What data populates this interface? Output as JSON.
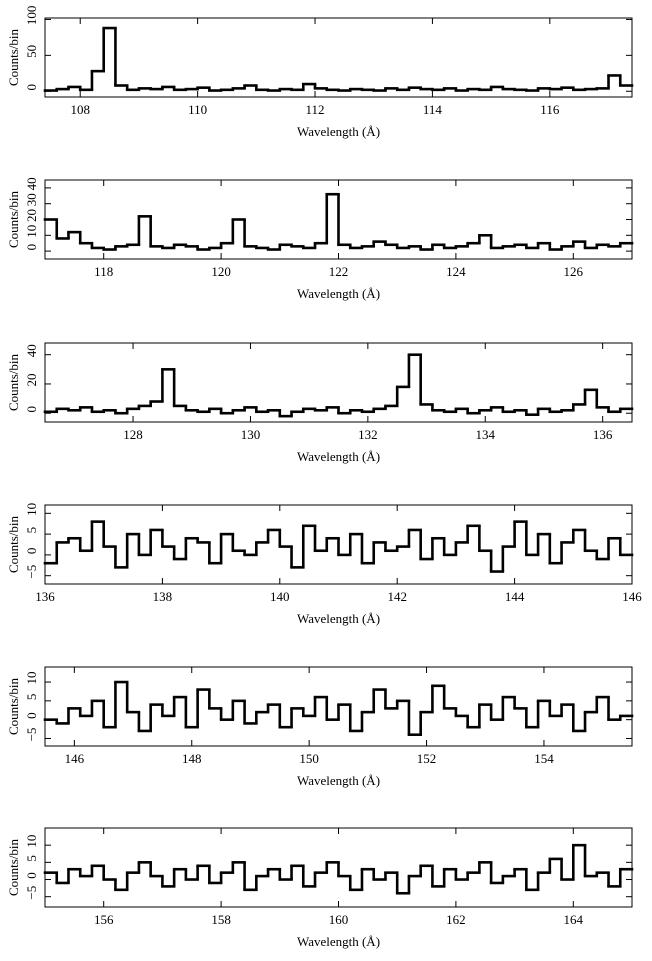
{
  "chart_data": [
    {
      "type": "histogram",
      "xlabel": "Wavelength (Å)",
      "ylabel": "Counts/bin",
      "color": "#000000",
      "bins": [
        107.4,
        107.6,
        107.8,
        108,
        108.2,
        108.4,
        108.6,
        108.8,
        109,
        109.2,
        109.4,
        109.6,
        109.8,
        110,
        110.2,
        110.4,
        110.6,
        110.8,
        111,
        111.2,
        111.4,
        111.6,
        111.8,
        112,
        112.2,
        112.4,
        112.6,
        112.8,
        113,
        113.2,
        113.4,
        113.6,
        113.8,
        114,
        114.2,
        114.4,
        114.6,
        114.8,
        115,
        115.2,
        115.4,
        115.6,
        115.8,
        116,
        116.2,
        116.4,
        116.6,
        116.8,
        117,
        117.2,
        117.4
      ],
      "values": [
        1,
        3,
        6,
        2,
        28,
        88,
        8,
        2,
        4,
        3,
        6,
        2,
        3,
        5,
        1,
        2,
        4,
        8,
        2,
        1,
        3,
        2,
        10,
        4,
        2,
        1,
        3,
        2,
        1,
        4,
        2,
        5,
        3,
        2,
        4,
        1,
        3,
        2,
        6,
        3,
        2,
        1,
        4,
        3,
        5,
        2,
        3,
        4,
        22,
        8
      ],
      "xlim": [
        107.4,
        117.4
      ],
      "ylim": [
        -8,
        102
      ],
      "xticks": [
        108,
        110,
        112,
        114,
        116
      ],
      "yticks": [
        0,
        50,
        100
      ]
    },
    {
      "type": "histogram",
      "xlabel": "Wavelength (Å)",
      "ylabel": "Counts/bin",
      "color": "#000000",
      "bins": [
        117,
        117.2,
        117.4,
        117.6,
        117.8,
        118,
        118.2,
        118.4,
        118.6,
        118.8,
        119,
        119.2,
        119.4,
        119.6,
        119.8,
        120,
        120.2,
        120.4,
        120.6,
        120.8,
        121,
        121.2,
        121.4,
        121.6,
        121.8,
        122,
        122.2,
        122.4,
        122.6,
        122.8,
        123,
        123.2,
        123.4,
        123.6,
        123.8,
        124,
        124.2,
        124.4,
        124.6,
        124.8,
        125,
        125.2,
        125.4,
        125.6,
        125.8,
        126,
        126.2,
        126.4,
        126.6,
        126.8,
        127
      ],
      "values": [
        20,
        8,
        12,
        5,
        2,
        1,
        3,
        4,
        22,
        3,
        2,
        4,
        3,
        1,
        2,
        5,
        20,
        3,
        2,
        1,
        4,
        3,
        2,
        5,
        36,
        4,
        2,
        3,
        6,
        4,
        2,
        3,
        1,
        4,
        2,
        3,
        5,
        10,
        2,
        3,
        4,
        2,
        5,
        1,
        3,
        6,
        2,
        4,
        3,
        5
      ],
      "xlim": [
        117,
        127
      ],
      "ylim": [
        -5,
        45
      ],
      "xticks": [
        118,
        120,
        122,
        124,
        126
      ],
      "yticks": [
        0,
        10,
        20,
        30,
        40
      ]
    },
    {
      "type": "histogram",
      "xlabel": "Wavelength (Å)",
      "ylabel": "Counts/bin",
      "color": "#000000",
      "bins": [
        126.5,
        126.7,
        126.9,
        127.1,
        127.3,
        127.5,
        127.7,
        127.9,
        128.1,
        128.3,
        128.5,
        128.7,
        128.9,
        129.1,
        129.3,
        129.5,
        129.7,
        129.9,
        130.1,
        130.3,
        130.5,
        130.7,
        130.9,
        131.1,
        131.3,
        131.5,
        131.7,
        131.9,
        132.1,
        132.3,
        132.5,
        132.7,
        132.9,
        133.1,
        133.3,
        133.5,
        133.7,
        133.9,
        134.1,
        134.3,
        134.5,
        134.7,
        134.9,
        135.1,
        135.3,
        135.5,
        135.7,
        135.9,
        136.1,
        136.3,
        136.5
      ],
      "values": [
        1,
        3,
        2,
        4,
        1,
        2,
        0,
        3,
        5,
        8,
        30,
        5,
        2,
        1,
        3,
        0,
        2,
        4,
        1,
        2,
        -2,
        1,
        3,
        2,
        4,
        0,
        2,
        1,
        3,
        5,
        18,
        40,
        6,
        2,
        1,
        3,
        0,
        2,
        4,
        1,
        2,
        -1,
        3,
        1,
        2,
        6,
        16,
        4,
        1,
        3
      ],
      "xlim": [
        126.5,
        136.5
      ],
      "ylim": [
        -6,
        48
      ],
      "xticks": [
        128,
        130,
        132,
        134,
        136
      ],
      "yticks": [
        0,
        20,
        40
      ]
    },
    {
      "type": "histogram",
      "xlabel": "Wavelength (Å)",
      "ylabel": "Counts/bin",
      "color": "#000000",
      "bins": [
        136,
        136.2,
        136.4,
        136.6,
        136.8,
        137,
        137.2,
        137.4,
        137.6,
        137.8,
        138,
        138.2,
        138.4,
        138.6,
        138.8,
        139,
        139.2,
        139.4,
        139.6,
        139.8,
        140,
        140.2,
        140.4,
        140.6,
        140.8,
        141,
        141.2,
        141.4,
        141.6,
        141.8,
        142,
        142.2,
        142.4,
        142.6,
        142.8,
        143,
        143.2,
        143.4,
        143.6,
        143.8,
        144,
        144.2,
        144.4,
        144.6,
        144.8,
        145,
        145.2,
        145.4,
        145.6,
        145.8,
        146
      ],
      "values": [
        -2,
        3,
        4,
        1,
        8,
        2,
        -3,
        5,
        0,
        6,
        2,
        -1,
        4,
        3,
        -2,
        5,
        1,
        0,
        3,
        6,
        2,
        -3,
        7,
        1,
        4,
        0,
        5,
        -2,
        3,
        1,
        2,
        6,
        -1,
        4,
        0,
        3,
        7,
        1,
        -4,
        2,
        8,
        0,
        5,
        -2,
        3,
        6,
        1,
        -1,
        4,
        0
      ],
      "xlim": [
        136,
        146
      ],
      "ylim": [
        -7,
        12
      ],
      "xticks": [
        136,
        138,
        140,
        142,
        144,
        146
      ],
      "yticks": [
        {
          "value": -5,
          "label": "−5"
        },
        0,
        5,
        10
      ]
    },
    {
      "type": "histogram",
      "xlabel": "Wavelength (Å)",
      "ylabel": "Counts/bin",
      "color": "#000000",
      "bins": [
        145.5,
        145.7,
        145.9,
        146.1,
        146.3,
        146.5,
        146.7,
        146.9,
        147.1,
        147.3,
        147.5,
        147.7,
        147.9,
        148.1,
        148.3,
        148.5,
        148.7,
        148.9,
        149.1,
        149.3,
        149.5,
        149.7,
        149.9,
        150.1,
        150.3,
        150.5,
        150.7,
        150.9,
        151.1,
        151.3,
        151.5,
        151.7,
        151.9,
        152.1,
        152.3,
        152.5,
        152.7,
        152.9,
        153.1,
        153.3,
        153.5,
        153.7,
        153.9,
        154.1,
        154.3,
        154.5,
        154.7,
        154.9,
        155.1,
        155.3,
        155.5
      ],
      "values": [
        0,
        -1,
        3,
        1,
        5,
        -2,
        10,
        2,
        -3,
        4,
        1,
        6,
        -2,
        8,
        3,
        0,
        5,
        -1,
        2,
        4,
        -2,
        3,
        1,
        6,
        0,
        4,
        -3,
        2,
        8,
        3,
        5,
        -4,
        2,
        9,
        3,
        1,
        -2,
        4,
        0,
        6,
        3,
        -2,
        5,
        1,
        4,
        -3,
        2,
        6,
        0,
        1
      ],
      "xlim": [
        145.5,
        155.5
      ],
      "ylim": [
        -7,
        14
      ],
      "xticks": [
        146,
        148,
        150,
        152,
        154
      ],
      "yticks": [
        {
          "value": -5,
          "label": "−5"
        },
        0,
        5,
        10
      ]
    },
    {
      "type": "histogram",
      "xlabel": "Wavelength (Å)",
      "ylabel": "Counts/bin",
      "color": "#000000",
      "bins": [
        155,
        155.2,
        155.4,
        155.6,
        155.8,
        156,
        156.2,
        156.4,
        156.6,
        156.8,
        157,
        157.2,
        157.4,
        157.6,
        157.8,
        158,
        158.2,
        158.4,
        158.6,
        158.8,
        159,
        159.2,
        159.4,
        159.6,
        159.8,
        160,
        160.2,
        160.4,
        160.6,
        160.8,
        161,
        161.2,
        161.4,
        161.6,
        161.8,
        162,
        162.2,
        162.4,
        162.6,
        162.8,
        163,
        163.2,
        163.4,
        163.6,
        163.8,
        164,
        164.2,
        164.4,
        164.6,
        164.8,
        165
      ],
      "values": [
        2,
        -1,
        3,
        1,
        4,
        0,
        -3,
        2,
        5,
        1,
        -2,
        3,
        0,
        4,
        -1,
        2,
        5,
        -3,
        1,
        3,
        0,
        4,
        -2,
        2,
        5,
        1,
        -3,
        3,
        0,
        2,
        -4,
        1,
        4,
        -2,
        3,
        0,
        2,
        5,
        -1,
        1,
        3,
        -3,
        2,
        6,
        0,
        10,
        1,
        2,
        -2,
        3
      ],
      "xlim": [
        155,
        165
      ],
      "ylim": [
        -8,
        15
      ],
      "xticks": [
        156,
        158,
        160,
        162,
        164
      ],
      "yticks": [
        {
          "value": -5,
          "label": "−5"
        },
        0,
        5,
        10
      ]
    }
  ]
}
